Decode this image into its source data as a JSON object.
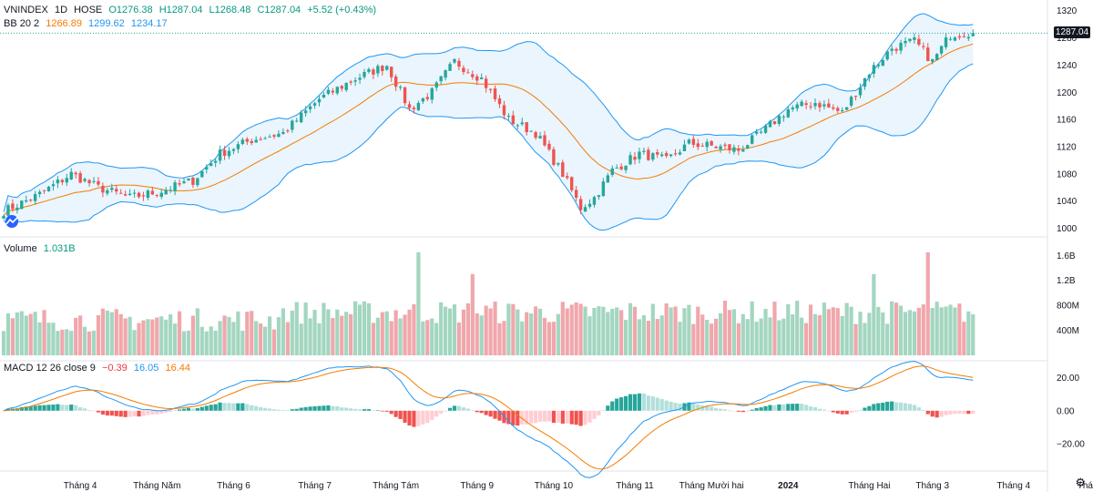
{
  "header": {
    "symbol": "VNINDEX",
    "interval": "1D",
    "exchange": "HOSE",
    "ohlc": {
      "o": "O1276.38",
      "h": "H1287.04",
      "l": "L1268.48",
      "c": "C1287.04",
      "chg": "+5.52 (+0.43%)"
    },
    "bb": {
      "label": "BB 20 2",
      "basis": "1266.89",
      "upper": "1299.62",
      "lower": "1234.17"
    }
  },
  "volume_legend": {
    "label": "Volume",
    "value": "1.031B"
  },
  "macd_legend": {
    "label": "MACD 12 26 close 9",
    "hist": "−0.39",
    "macd": "16.05",
    "signal": "16.44"
  },
  "last_price_tag": "1287.04",
  "colors": {
    "up": "#26a69a",
    "down": "#ef5350",
    "vol_up": "#a3d6c0",
    "vol_down": "#f0a7ab",
    "bb_band": "#2196f3",
    "bb_basis": "#f57c00",
    "bb_fill": "#e3f2fd",
    "macd_line": "#2196f3",
    "signal_line": "#f57c00"
  },
  "chart_data": [
    {
      "type": "candlestick",
      "name": "price",
      "ylim": [
        990,
        1325
      ],
      "y_ticks": [
        1000,
        1040,
        1080,
        1120,
        1160,
        1200,
        1240,
        1280,
        1320
      ],
      "anchors": [
        [
          0,
          1025
        ],
        [
          8,
          1050
        ],
        [
          15,
          1080
        ],
        [
          21,
          1060
        ],
        [
          28,
          1045
        ],
        [
          35,
          1055
        ],
        [
          42,
          1070
        ],
        [
          48,
          1110
        ],
        [
          55,
          1130
        ],
        [
          62,
          1140
        ],
        [
          70,
          1190
        ],
        [
          78,
          1220
        ],
        [
          85,
          1240
        ],
        [
          90,
          1175
        ],
        [
          95,
          1200
        ],
        [
          100,
          1245
        ],
        [
          106,
          1220
        ],
        [
          112,
          1160
        ],
        [
          118,
          1140
        ],
        [
          124,
          1080
        ],
        [
          128,
          1030
        ],
        [
          131,
          1045
        ],
        [
          135,
          1085
        ],
        [
          141,
          1110
        ],
        [
          147,
          1100
        ],
        [
          152,
          1125
        ],
        [
          158,
          1120
        ],
        [
          163,
          1115
        ],
        [
          168,
          1140
        ],
        [
          174,
          1175
        ],
        [
          180,
          1185
        ],
        [
          186,
          1170
        ],
        [
          192,
          1230
        ],
        [
          197,
          1265
        ],
        [
          202,
          1275
        ],
        [
          206,
          1245
        ],
        [
          210,
          1285
        ],
        [
          213,
          1287.04
        ]
      ],
      "x_ticks": [
        {
          "i": 17,
          "label": "Tháng 4"
        },
        {
          "i": 34,
          "label": "Tháng Năm"
        },
        {
          "i": 51,
          "label": "Tháng 6"
        },
        {
          "i": 69,
          "label": "Tháng 7"
        },
        {
          "i": 87,
          "label": "Tháng Tám"
        },
        {
          "i": 105,
          "label": "Tháng 9"
        },
        {
          "i": 122,
          "label": "Tháng 10"
        },
        {
          "i": 140,
          "label": "Tháng 11"
        },
        {
          "i": 157,
          "label": "Tháng Mười hai"
        },
        {
          "i": 174,
          "label": "2024",
          "bold": true
        },
        {
          "i": 192,
          "label": "Tháng Hai"
        },
        {
          "i": 206,
          "label": "Tháng 3"
        },
        {
          "i": 224,
          "label": "Tháng 4"
        },
        {
          "i": 241,
          "label": "Tháng"
        }
      ],
      "last_close": 1287.04
    },
    {
      "type": "bar",
      "name": "Volume",
      "ylim": [
        0,
        1750000000
      ],
      "y_ticks": [
        {
          "v": 400000000,
          "label": "400M"
        },
        {
          "v": 800000000,
          "label": "800M"
        },
        {
          "v": 1200000000,
          "label": "1.2B"
        },
        {
          "v": 1600000000,
          "label": "1.6B"
        }
      ],
      "highlights": [
        [
          92,
          1650000000
        ],
        [
          104,
          1300000000
        ],
        [
          193,
          1300000000
        ],
        [
          205,
          1650000000
        ]
      ]
    },
    {
      "type": "line",
      "name": "MACD",
      "ylim": [
        -30,
        27
      ],
      "y_ticks": [
        {
          "v": 20,
          "label": "20.00"
        },
        {
          "v": 0,
          "label": "0.00"
        },
        {
          "v": -20,
          "label": "−20.00"
        }
      ]
    }
  ]
}
